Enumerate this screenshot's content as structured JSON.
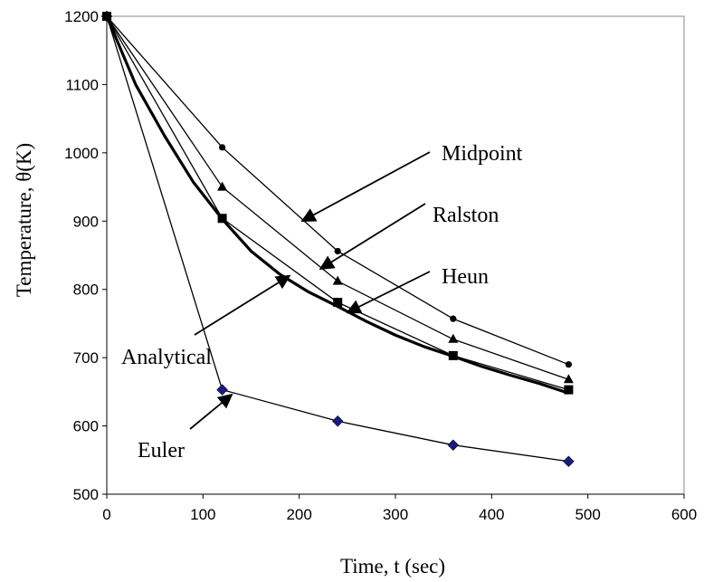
{
  "chart_data": {
    "type": "line",
    "xlabel": "Time, t (sec)",
    "ylabel": "Temperature, θ(K)",
    "xlim": [
      0,
      600
    ],
    "ylim": [
      500,
      1200
    ],
    "xticks": [
      0,
      100,
      200,
      300,
      400,
      500,
      600
    ],
    "yticks": [
      500,
      600,
      700,
      800,
      900,
      1000,
      1100,
      1200
    ],
    "grid": false,
    "legend": "none",
    "series": [
      {
        "name": "Analytical",
        "marker": "none",
        "color": "#000000",
        "x": [
          0,
          30,
          60,
          90,
          120,
          150,
          180,
          210,
          240,
          270,
          300,
          330,
          360,
          390,
          420,
          450,
          480
        ],
        "y": [
          1200,
          1100,
          1025,
          957,
          903,
          856,
          822,
          796,
          775,
          753,
          733,
          716,
          702,
          687,
          674,
          662,
          648
        ]
      },
      {
        "name": "Euler",
        "marker": "diamond",
        "color": "#1a1a7a",
        "x": [
          0,
          120,
          240,
          360,
          480
        ],
        "y": [
          1200,
          653,
          607,
          572,
          548
        ]
      },
      {
        "name": "Heun",
        "marker": "square",
        "color": "#000000",
        "x": [
          0,
          120,
          240,
          360,
          480
        ],
        "y": [
          1200,
          904,
          781,
          703,
          653
        ]
      },
      {
        "name": "Ralston",
        "marker": "triangle",
        "color": "#000000",
        "x": [
          0,
          120,
          240,
          360,
          480
        ],
        "y": [
          1200,
          950,
          812,
          727,
          668
        ]
      },
      {
        "name": "Midpoint",
        "marker": "circle",
        "color": "#000000",
        "x": [
          0,
          120,
          240,
          360,
          480
        ],
        "y": [
          1200,
          1008,
          856,
          757,
          690
        ]
      }
    ],
    "annotations": [
      {
        "text": "Midpoint",
        "target_x": 203,
        "target_y": 900
      },
      {
        "text": "Ralston",
        "target_x": 222,
        "target_y": 830
      },
      {
        "text": "Heun",
        "target_x": 250,
        "target_y": 766
      },
      {
        "text": "Analytical",
        "target_x": 190,
        "target_y": 820
      },
      {
        "text": "Euler",
        "target_x": 130,
        "target_y": 646
      }
    ]
  }
}
